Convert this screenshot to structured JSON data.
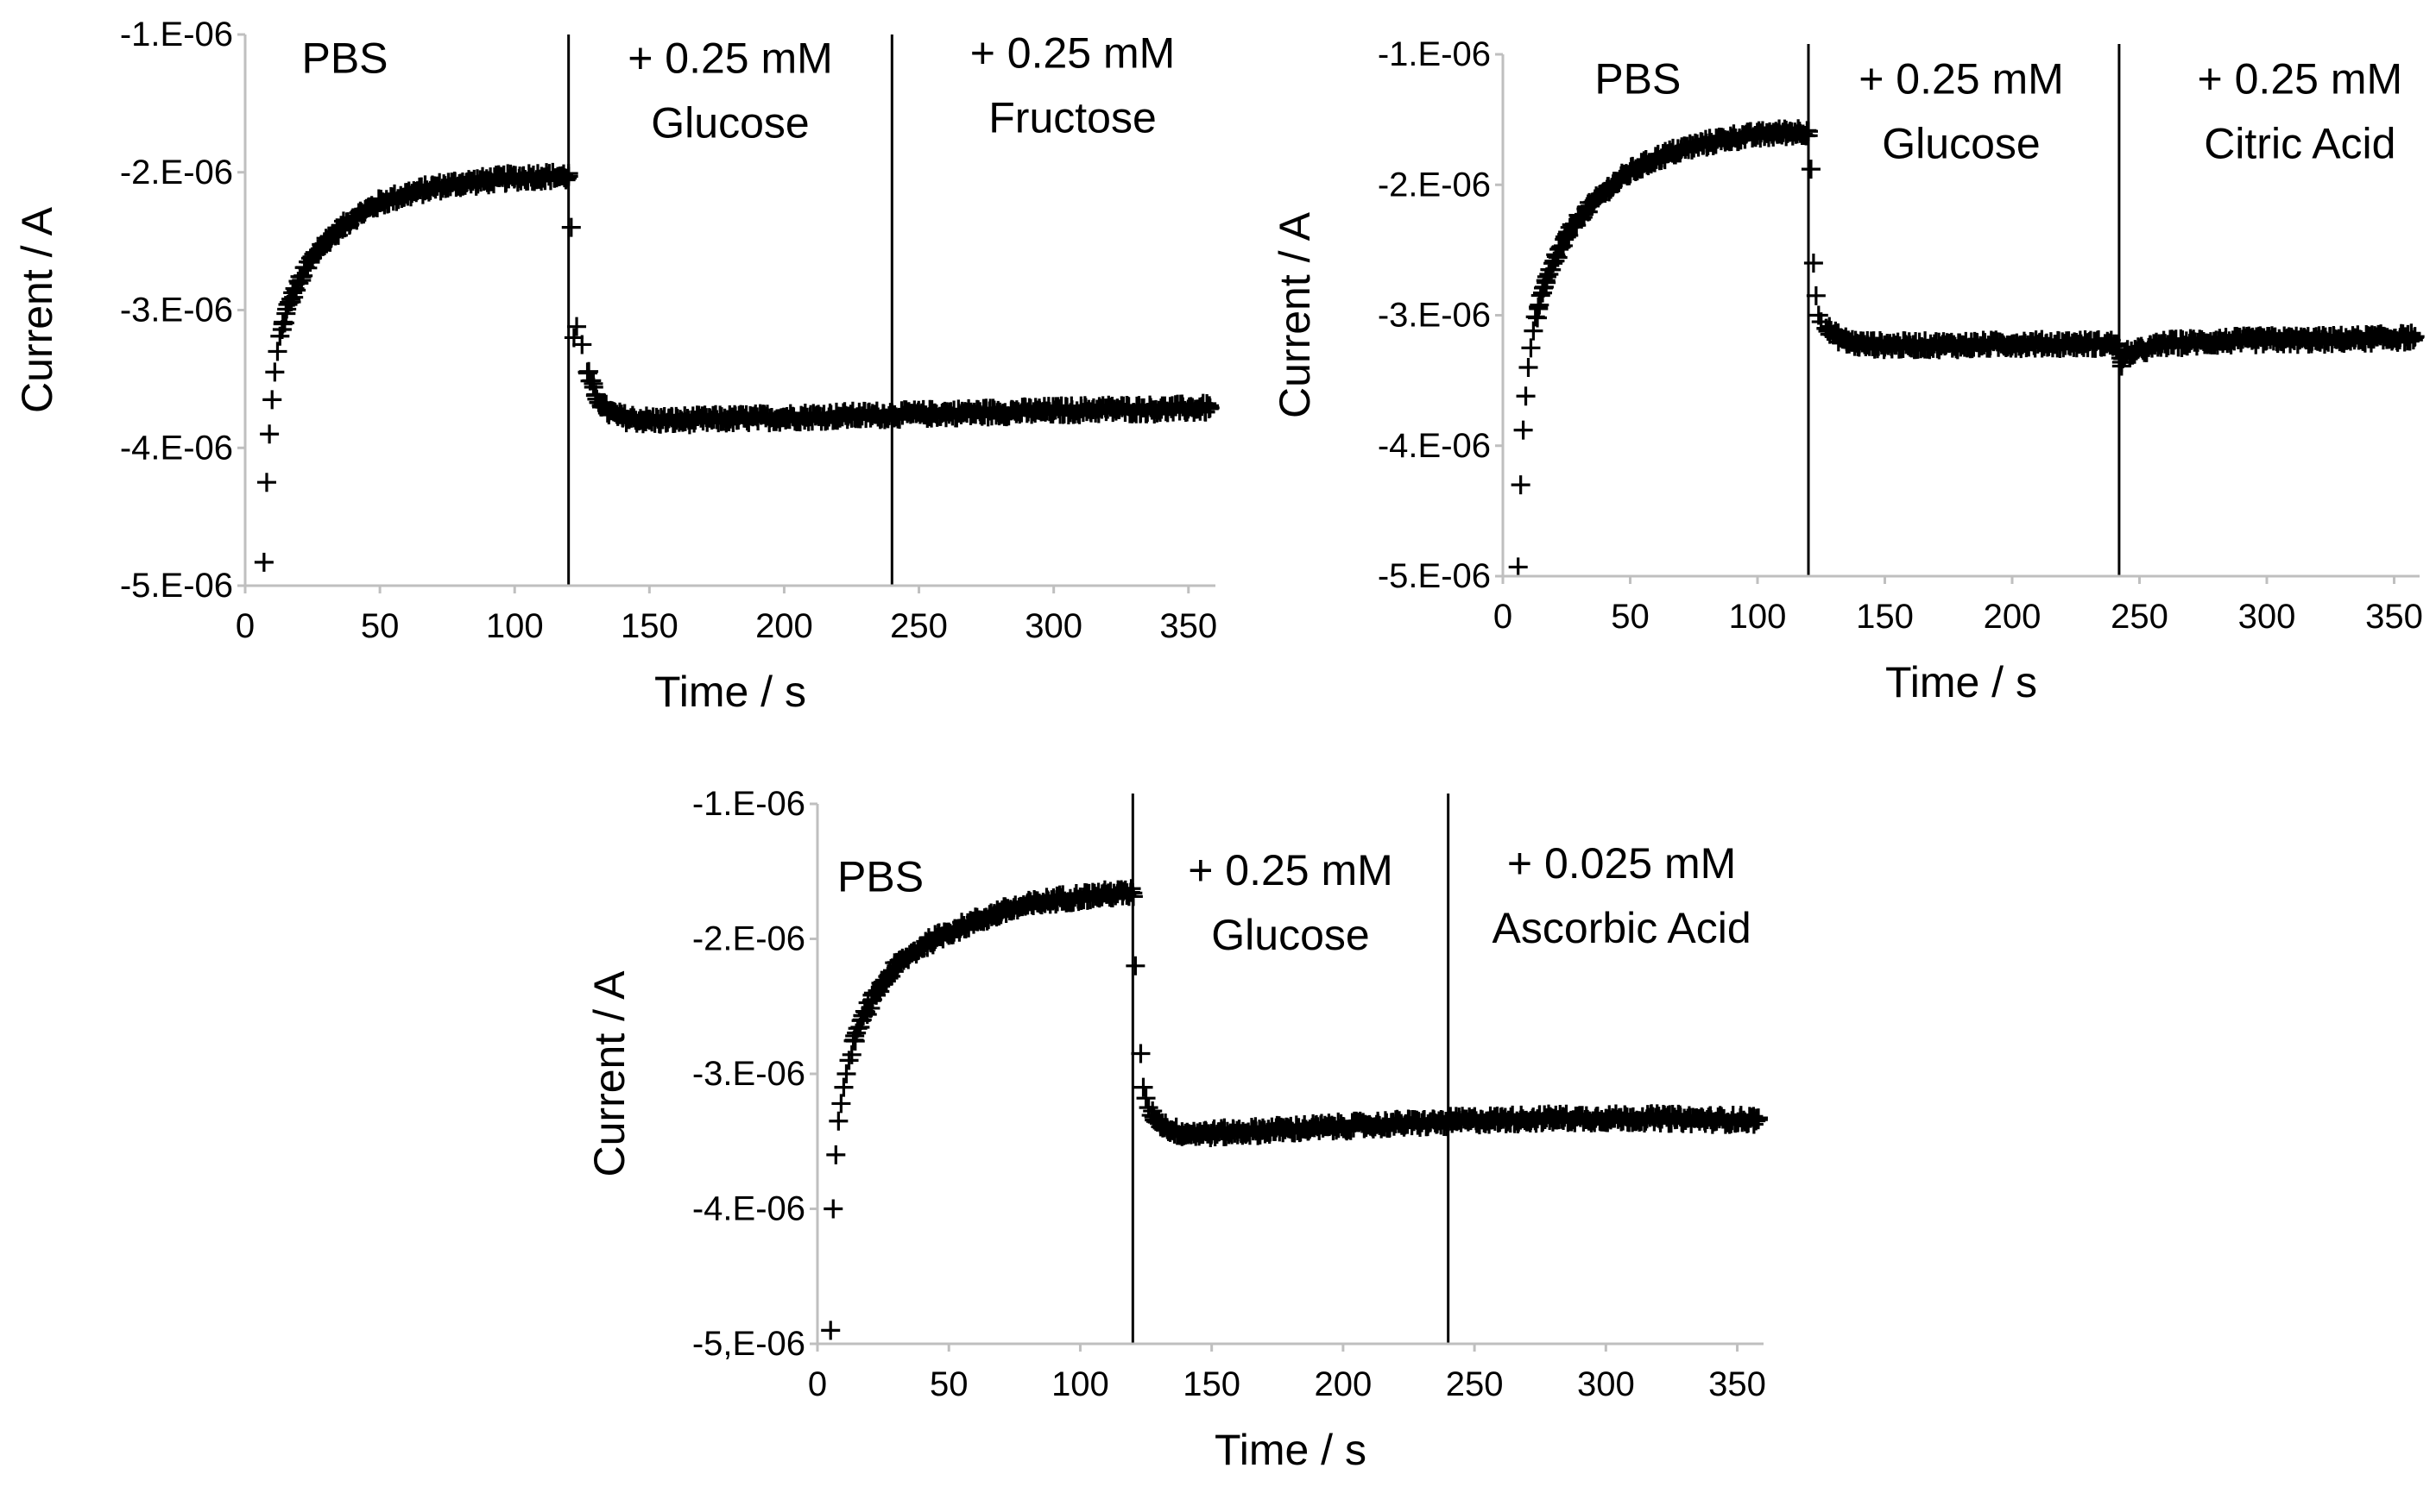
{
  "chart_data": [
    {
      "type": "scatter",
      "marker": "plus",
      "xlabel": "Time / s",
      "ylabel": "Current / A",
      "xlim": [
        0,
        360
      ],
      "ylim": [
        -5e-06,
        -1e-06
      ],
      "xticks": [
        "0",
        "50",
        "100",
        "150",
        "200",
        "250",
        "300",
        "350"
      ],
      "yticks": [
        "-1.E-06",
        "-2.E-06",
        "-3.E-06",
        "-4.E-06",
        "-5.E-06"
      ],
      "dividers": [
        120,
        240
      ],
      "annotations": [
        {
          "lines": [
            "PBS"
          ],
          "x": 37,
          "y": -1.28e-06
        },
        {
          "lines": [
            "+ 0.25 mM",
            "Glucose"
          ],
          "x": 180,
          "y": -1.28e-06
        },
        {
          "lines": [
            "+ 0.25 mM",
            "Fructose"
          ],
          "x": 307,
          "y": -1.24e-06
        }
      ],
      "series": [
        {
          "name": "PBS",
          "x": [
            7,
            8,
            9,
            10,
            11,
            12,
            14,
            17,
            21,
            25,
            30,
            40,
            50,
            60,
            70,
            80,
            90,
            100,
            110,
            120
          ],
          "y": [
            -4.83e-06,
            -4.25e-06,
            -3.9e-06,
            -3.65e-06,
            -3.45e-06,
            -3.3e-06,
            -3.1e-06,
            -2.92e-06,
            -2.76e-06,
            -2.62e-06,
            -2.5e-06,
            -2.33e-06,
            -2.22e-06,
            -2.16e-06,
            -2.11e-06,
            -2.08e-06,
            -2.06e-06,
            -2.04e-06,
            -2.03e-06,
            -2.03e-06
          ]
        },
        {
          "name": "+ 0.25 mM Glucose",
          "x": [
            121,
            122,
            123,
            125,
            127,
            130,
            135,
            140,
            150,
            160,
            180,
            200,
            220,
            240
          ],
          "y": [
            -2.4e-06,
            -3.2e-06,
            -3.12e-06,
            -3.25e-06,
            -3.45e-06,
            -3.62e-06,
            -3.74e-06,
            -3.78e-06,
            -3.8e-06,
            -3.8e-06,
            -3.79e-06,
            -3.78e-06,
            -3.77e-06,
            -3.76e-06
          ]
        },
        {
          "name": "+ 0.25 mM Fructose",
          "x": [
            241,
            260,
            280,
            300,
            320,
            340,
            358
          ],
          "y": [
            -3.76e-06,
            -3.75e-06,
            -3.74e-06,
            -3.73e-06,
            -3.72e-06,
            -3.72e-06,
            -3.71e-06
          ]
        }
      ]
    },
    {
      "type": "scatter",
      "marker": "plus",
      "xlabel": "Time / s",
      "ylabel": "Current / A",
      "xlim": [
        0,
        360
      ],
      "ylim": [
        -5e-06,
        -1e-06
      ],
      "xticks": [
        "0",
        "50",
        "100",
        "150",
        "200",
        "250",
        "300",
        "350"
      ],
      "yticks": [
        "-1.E-06",
        "-2.E-06",
        "-3.E-06",
        "-4.E-06",
        "-5.E-06"
      ],
      "dividers": [
        120,
        242
      ],
      "annotations": [
        {
          "lines": [
            "PBS"
          ],
          "x": 53,
          "y": -1.3e-06
        },
        {
          "lines": [
            "+ 0.25 mM",
            "Glucose"
          ],
          "x": 180,
          "y": -1.3e-06
        },
        {
          "lines": [
            "+ 0.25 mM",
            "Citric Acid"
          ],
          "x": 313,
          "y": -1.3e-06
        }
      ],
      "series": [
        {
          "name": "PBS",
          "x": [
            6,
            7,
            8,
            9,
            10,
            11,
            12,
            14,
            17,
            21,
            25,
            30,
            40,
            50,
            60,
            70,
            80,
            90,
            100,
            110,
            120
          ],
          "y": [
            -4.93e-06,
            -4.3e-06,
            -3.88e-06,
            -3.62e-06,
            -3.4e-06,
            -3.25e-06,
            -3.12e-06,
            -2.95e-06,
            -2.75e-06,
            -2.55e-06,
            -2.4e-06,
            -2.25e-06,
            -2.05e-06,
            -1.9e-06,
            -1.8e-06,
            -1.73e-06,
            -1.68e-06,
            -1.64e-06,
            -1.62e-06,
            -1.6e-06,
            -1.59e-06
          ]
        },
        {
          "name": "+ 0.25 mM Glucose",
          "x": [
            121,
            122,
            123,
            124,
            125,
            127,
            130,
            135,
            140,
            150,
            160,
            180,
            200,
            220,
            240
          ],
          "y": [
            -1.88e-06,
            -2.6e-06,
            -2.85e-06,
            -3e-06,
            -3.05e-06,
            -3.1e-06,
            -3.15e-06,
            -3.2e-06,
            -3.22e-06,
            -3.23e-06,
            -3.23e-06,
            -3.23e-06,
            -3.22e-06,
            -3.22e-06,
            -3.22e-06
          ]
        },
        {
          "name": "+ 0.25 mM Citric Acid",
          "x": [
            241,
            243,
            245,
            260,
            280,
            300,
            320,
            340,
            358
          ],
          "y": [
            -3.22e-06,
            -3.36e-06,
            -3.3e-06,
            -3.22e-06,
            -3.2e-06,
            -3.19e-06,
            -3.19e-06,
            -3.18e-06,
            -3.17e-06
          ]
        }
      ]
    },
    {
      "type": "scatter",
      "marker": "plus",
      "xlabel": "Time / s",
      "ylabel": "Current / A",
      "xlim": [
        0,
        360
      ],
      "ylim": [
        -5e-06,
        -1e-06
      ],
      "xticks": [
        "0",
        "50",
        "100",
        "150",
        "200",
        "250",
        "300",
        "350"
      ],
      "yticks": [
        "-1.E-06",
        "-2.E-06",
        "-3.E-06",
        "-4.E-06",
        "-5,E-06"
      ],
      "dividers": [
        120,
        240
      ],
      "annotations": [
        {
          "lines": [
            "PBS"
          ],
          "x": 24,
          "y": -1.65e-06
        },
        {
          "lines": [
            "+ 0.25 mM",
            "Glucose"
          ],
          "x": 180,
          "y": -1.6e-06
        },
        {
          "lines": [
            "+ 0.025 mM",
            "Ascorbic Acid"
          ],
          "x": 306,
          "y": -1.55e-06
        }
      ],
      "series": [
        {
          "name": "PBS",
          "x": [
            5,
            6,
            7,
            8,
            9,
            10,
            11,
            12,
            14,
            17,
            21,
            25,
            30,
            40,
            50,
            60,
            70,
            80,
            90,
            100,
            110,
            120
          ],
          "y": [
            -4.9e-06,
            -4e-06,
            -3.6e-06,
            -3.35e-06,
            -3.22e-06,
            -3.1e-06,
            -3e-06,
            -2.9e-06,
            -2.75e-06,
            -2.6e-06,
            -2.45e-06,
            -2.32e-06,
            -2.2e-06,
            -2.05e-06,
            -1.95e-06,
            -1.87e-06,
            -1.8e-06,
            -1.75e-06,
            -1.71e-06,
            -1.69e-06,
            -1.67e-06,
            -1.66e-06
          ]
        },
        {
          "name": "+ 0.25 mM Glucose",
          "x": [
            121,
            123,
            124,
            125,
            126,
            128,
            131,
            135,
            140,
            150,
            160,
            180,
            200,
            220,
            240
          ],
          "y": [
            -2.2e-06,
            -2.85e-06,
            -3.1e-06,
            -3.18e-06,
            -3.25e-06,
            -3.32e-06,
            -3.37e-06,
            -3.42e-06,
            -3.44e-06,
            -3.44e-06,
            -3.43e-06,
            -3.41e-06,
            -3.39e-06,
            -3.37e-06,
            -3.36e-06
          ]
        },
        {
          "name": "+ 0.025 mM Ascorbic Acid",
          "x": [
            241,
            260,
            280,
            300,
            320,
            340,
            358
          ],
          "y": [
            -3.35e-06,
            -3.34e-06,
            -3.33e-06,
            -3.33e-06,
            -3.33e-06,
            -3.34e-06,
            -3.34e-06
          ]
        }
      ]
    }
  ]
}
